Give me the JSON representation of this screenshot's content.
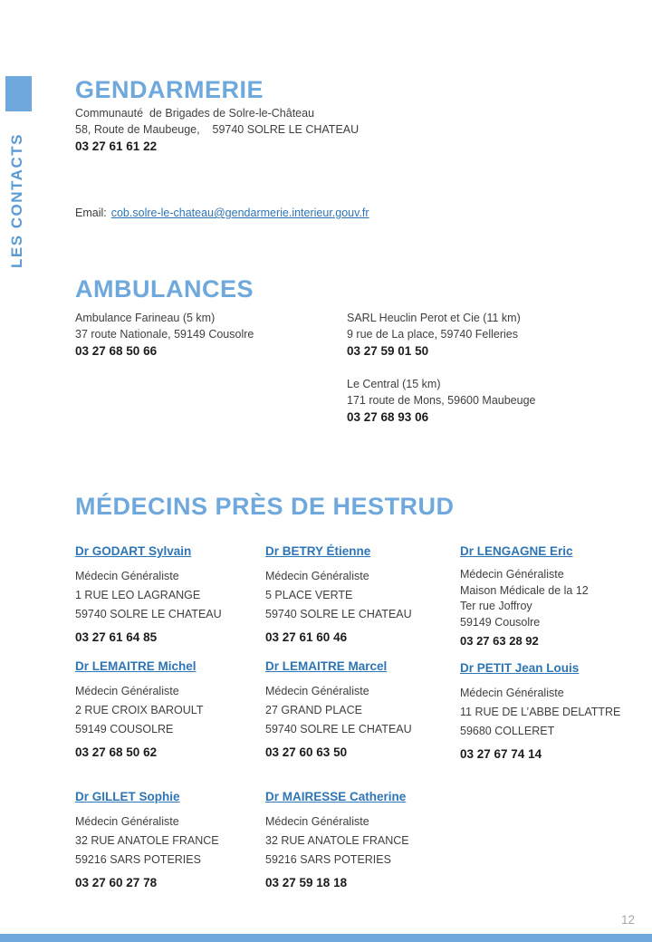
{
  "colors": {
    "accent": "#6fa8dc",
    "sidebar_text": "#5b9bd5",
    "link": "#2e75b6",
    "body_text": "#3f3f3f",
    "phone_text": "#1c1c1c",
    "page_number": "#a6a6a6"
  },
  "sidebar": {
    "label": "LES CONTACTS"
  },
  "sections": {
    "gendarmerie": {
      "title": "GENDARMERIE",
      "line1": "Communauté  de Brigades de Solre-le-Château",
      "line2": "58, Route de Maubeuge,    59740 SOLRE LE CHATEAU",
      "phone": "03 27 61 61 22",
      "email_label": "Email:",
      "email_link": "cob.solre-le-chateau@gendarmerie.interieur.gouv.fr"
    },
    "ambulances": {
      "title": "AMBULANCES",
      "entries": [
        {
          "name": "Ambulance Farineau (5 km)",
          "address": "37 route Nationale, 59149 Cousolre",
          "phone": "03 27 68 50 66"
        },
        {
          "name": "SARL Heuclin Perot et Cie (11 km)",
          "address": "9 rue de La place, 59740 Felleries",
          "phone": "03 27 59 01 50"
        },
        {
          "name": "Le Central (15 km)",
          "address": "171 route de Mons, 59600 Maubeuge",
          "phone": "03 27 68 93 06"
        }
      ]
    },
    "medecins": {
      "title": "MÉDECINS PRÈS DE HESTRUD",
      "doctors": [
        {
          "name": "Dr GODART Sylvain",
          "specialty": "Médecin Généraliste",
          "lines": [
            "1 RUE LEO LAGRANGE",
            "59740 SOLRE LE CHATEAU"
          ],
          "phone": "03 27 61 64 85"
        },
        {
          "name": "Dr BETRY Étienne",
          "specialty": "Médecin Généraliste",
          "lines": [
            "5 PLACE VERTE",
            "59740 SOLRE LE CHATEAU"
          ],
          "phone": "03 27 61 60 46"
        },
        {
          "name": "Dr LENGAGNE Eric",
          "specialty": "Médecin Généraliste",
          "lines": [
            "Maison Médicale de la 12",
            "Ter rue Joffroy",
            "59149 Cousolre"
          ],
          "phone": "03 27 63 28 92"
        },
        {
          "name": "Dr LEMAITRE Michel",
          "specialty": "Médecin Généraliste",
          "lines": [
            "2 RUE CROIX BAROULT",
            "59149 COUSOLRE"
          ],
          "phone": "03 27 68 50 62"
        },
        {
          "name": "Dr LEMAITRE Marcel",
          "specialty": "Médecin Généraliste",
          "lines": [
            "27 GRAND PLACE",
            "59740 SOLRE LE CHATEAU"
          ],
          "phone": "03 27 60 63 50"
        },
        {
          "name": "Dr PETIT Jean Louis",
          "specialty": "Médecin Généraliste",
          "lines": [
            "11 RUE DE L’ABBE DELATTRE",
            "59680 COLLERET"
          ],
          "phone": "03 27 67 74 14"
        },
        {
          "name": "Dr GILLET Sophie",
          "specialty": "Médecin Généraliste",
          "lines": [
            "32 RUE ANATOLE FRANCE",
            "59216 SARS POTERIES"
          ],
          "phone": "03 27 60 27 78"
        },
        {
          "name": "Dr MAIRESSE Catherine",
          "specialty": "Médecin Généraliste",
          "lines": [
            "32 RUE ANATOLE FRANCE",
            "59216 SARS POTERIES"
          ],
          "phone": "03 27 59 18 18"
        }
      ]
    }
  },
  "page": {
    "number": "12"
  }
}
